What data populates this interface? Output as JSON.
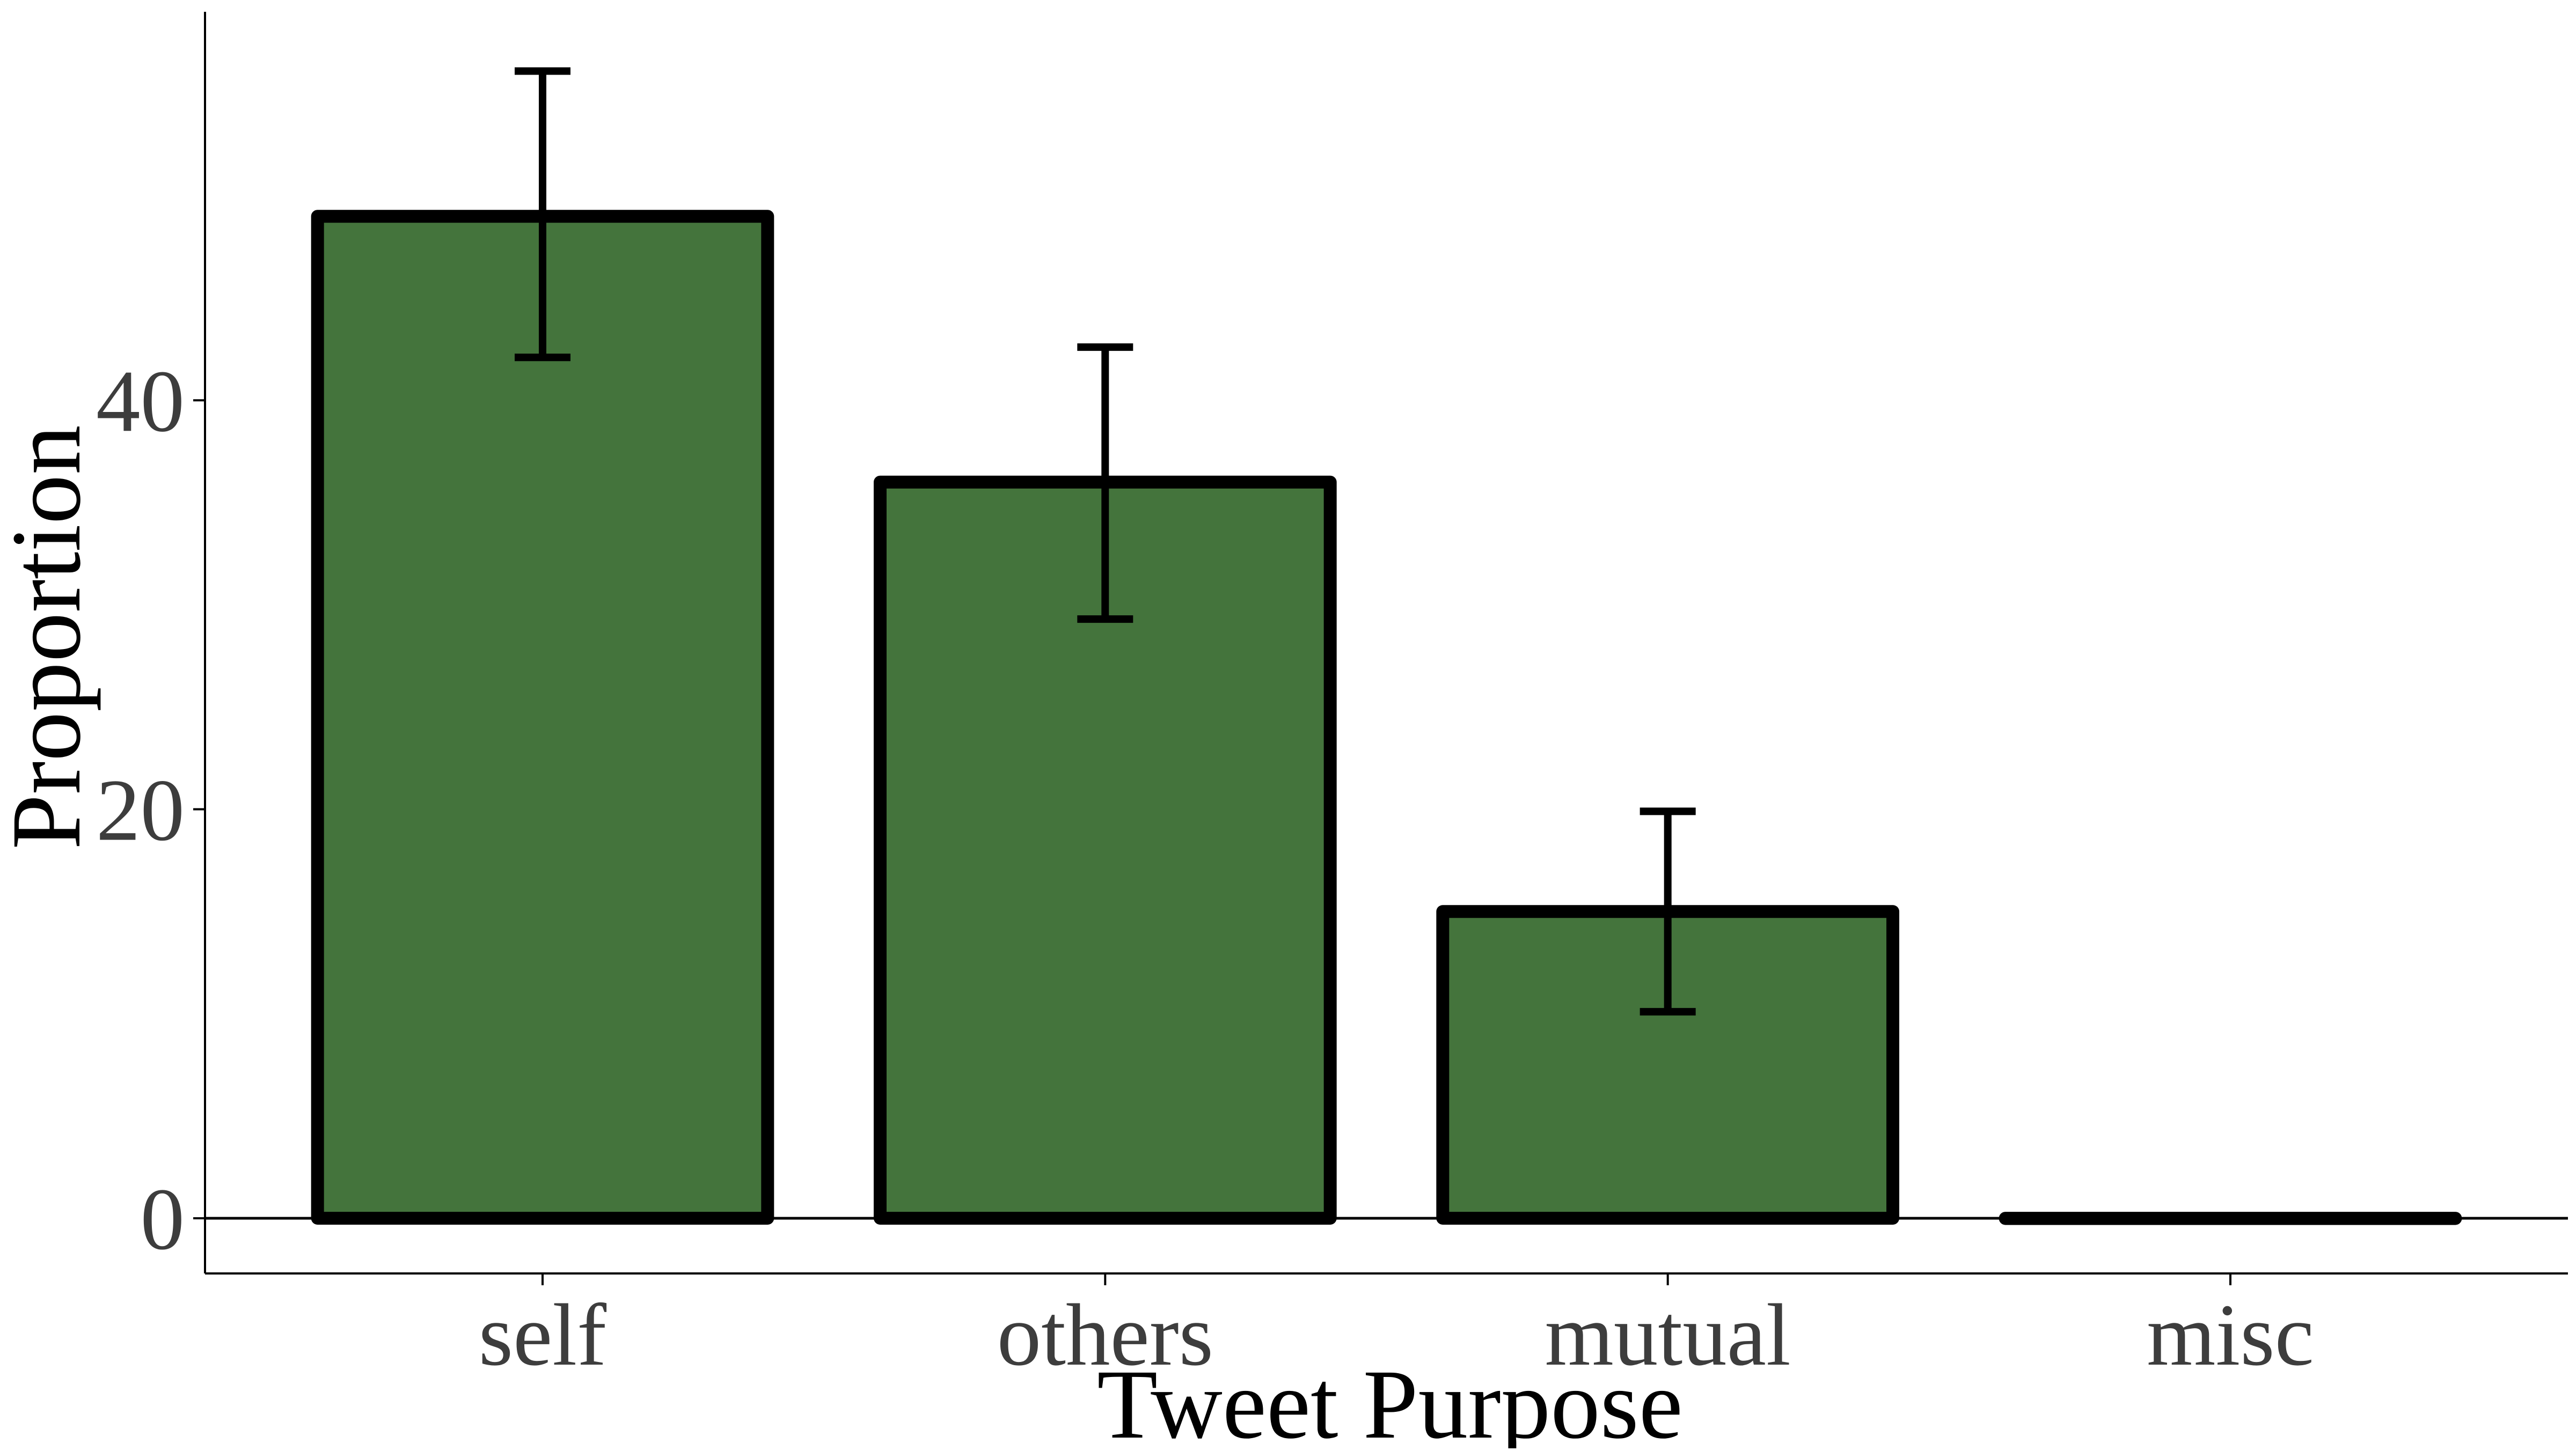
{
  "chart_data": {
    "type": "bar",
    "categories": [
      "self",
      "others",
      "mutual",
      "misc"
    ],
    "values": [
      49,
      36,
      15,
      0
    ],
    "error_low": [
      42.1,
      29.3,
      10.1,
      0
    ],
    "error_high": [
      56.1,
      42.6,
      19.9,
      0
    ],
    "xlabel": "Tweet Purpose",
    "ylabel": "Proportion",
    "ylim": [
      -2.7,
      59
    ],
    "yticks": [
      0,
      20,
      40
    ],
    "ytick_labels": [
      "0",
      "20",
      "40"
    ],
    "grid": false,
    "legend": "none",
    "bar_color": "#44743c",
    "bar_edge_color": "#000000"
  }
}
